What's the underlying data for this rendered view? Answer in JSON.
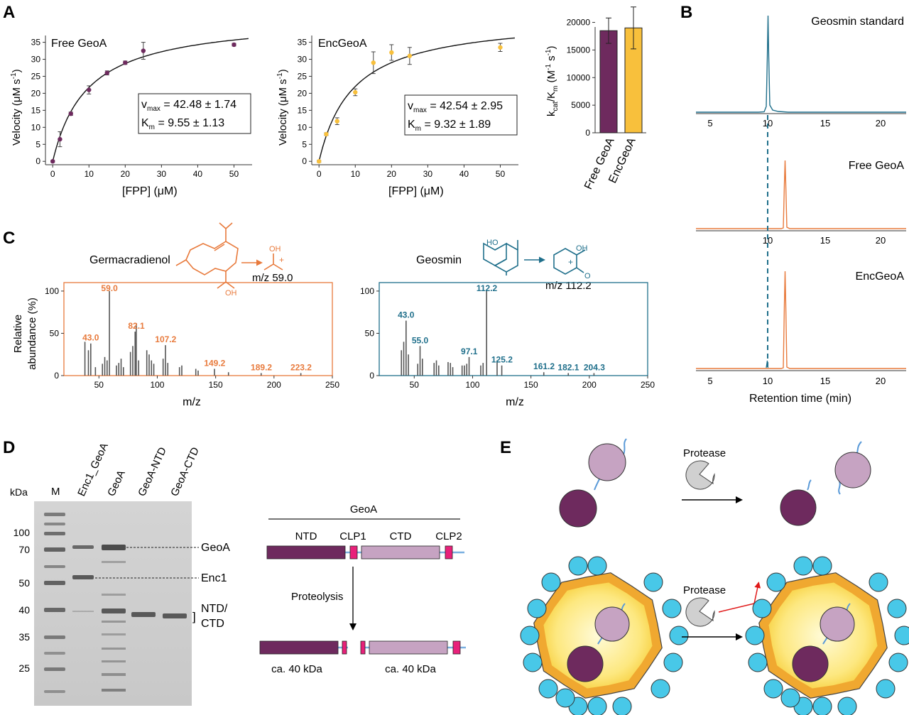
{
  "panel_labels": {
    "a": "A",
    "b": "B",
    "c": "C",
    "d": "D",
    "e": "E"
  },
  "colors": {
    "purple": "#6e2a5e",
    "yellow": "#f8c03c",
    "orange": "#e87a3c",
    "blue": "#1f6f8b",
    "lilac": "#c6a3c2",
    "pink": "#e8217a",
    "cyan": "#48c8e8",
    "shell": "#f0a830"
  },
  "panelA": {
    "kinetics_free": {
      "title": "Free GeoA",
      "box_line1": "v",
      "box_sub1": "max",
      "box_val1": " = 42.48 ± 1.74",
      "box_line2": "K",
      "box_sub2": "m",
      "box_val2": " = 9.55 ± 1.13",
      "ylabel": "Velocity (μM s",
      "ylabel_sup": "-1",
      "ylabel_end": ")",
      "xlabel": "[FPP] (μM)",
      "yticks": [
        "0",
        "5",
        "10",
        "15",
        "20",
        "25",
        "30",
        "35"
      ],
      "xticks": [
        "0",
        "10",
        "20",
        "30",
        "40",
        "50"
      ]
    },
    "kinetics_enc": {
      "title": "EncGeoA",
      "box_line1": "v",
      "box_sub1": "max",
      "box_val1": " = 42.54 ± 2.95",
      "box_line2": "K",
      "box_sub2": "m",
      "box_val2": " = 9.32 ± 1.89",
      "ylabel": "Velocity (μM s",
      "ylabel_sup": "-1",
      "ylabel_end": ")",
      "xlabel": "[FPP] (μM)",
      "yticks": [
        "0",
        "5",
        "10",
        "15",
        "20",
        "25",
        "30",
        "35"
      ],
      "xticks": [
        "0",
        "10",
        "20",
        "30",
        "40",
        "50"
      ]
    },
    "bar": {
      "ylabel_k": "k",
      "ylabel_cat": "cat",
      "ylabel_mid": "/K",
      "ylabel_m": "m",
      "ylabel_unit": " (M",
      "ylabel_sup": "-1",
      "ylabel_s": " s",
      "ylabel_sup2": "-1",
      "ylabel_end": ")",
      "yticks": [
        "0",
        "5000",
        "10000",
        "15000",
        "20000"
      ],
      "categories": [
        "Free GeoA",
        "EncGeoA"
      ]
    }
  },
  "panelB": {
    "traces": [
      "Geosmin standard",
      "Free GeoA",
      "EncGeoA"
    ],
    "xticks": [
      "5",
      "10",
      "15",
      "20"
    ],
    "xlabel": "Retention time (min)"
  },
  "panelC": {
    "germ": {
      "name": "Germacradienol",
      "oh": "OH",
      "frag_oh": "OH",
      "frag_mz": "m/z 59.0"
    },
    "geos": {
      "name": "Geosmin",
      "ho": "HO",
      "frag_oh": "OH",
      "frag_o": "O",
      "frag_mz": "m/z 112.2"
    },
    "plus": "+",
    "ylabel1": "Relative",
    "ylabel2": "abundance (%)",
    "xlabel": "m/z",
    "yticks": [
      "0",
      "50",
      "100"
    ],
    "xticks": [
      "50",
      "100",
      "150",
      "200",
      "250"
    ],
    "germ_peaks": [
      "59.0",
      "82.1",
      "43.0",
      "107.2",
      "149.2",
      "189.2",
      "223.2"
    ],
    "geos_peaks": [
      "112.2",
      "43.0",
      "55.0",
      "97.1",
      "125.2",
      "161.2",
      "182.1",
      "204.3"
    ]
  },
  "panelD": {
    "lanes": [
      "M",
      "Enc1_GeoA",
      "GeoA",
      "GeoA-NTD",
      "GeoA-CTD"
    ],
    "kda": "kDa",
    "markers": [
      "100",
      "70",
      "50",
      "40",
      "35",
      "25"
    ],
    "band_labels": [
      "GeoA",
      "Enc1",
      "NTD/",
      "CTD"
    ],
    "bracket": "]",
    "scheme": {
      "title": "GeoA",
      "domains": [
        "NTD",
        "CLP1",
        "CTD",
        "CLP2"
      ],
      "arrow_label": "Proteolysis",
      "sizes": [
        "ca. 40 kDa",
        "ca. 40 kDa"
      ]
    }
  },
  "panelE": {
    "protease_top": "Protease",
    "protease_bottom": "Protease"
  },
  "chart_data": [
    {
      "type": "scatter",
      "title": "Free GeoA",
      "xlabel": "[FPP] (μM)",
      "ylabel": "Velocity (μM s-1)",
      "xlim": [
        -2,
        55
      ],
      "ylim": [
        -1,
        37
      ],
      "x": [
        0,
        2,
        5,
        10,
        15,
        20,
        25,
        50
      ],
      "y": [
        0,
        6.5,
        14,
        21,
        26,
        29,
        32.5,
        34.3
      ],
      "err": [
        0.3,
        2.2,
        0.5,
        1.2,
        0.6,
        0.5,
        2.5,
        0.4
      ],
      "fit": {
        "vmax": 42.48,
        "km": 9.55
      }
    },
    {
      "type": "scatter",
      "title": "EncGeoA",
      "xlabel": "[FPP] (μM)",
      "ylabel": "Velocity (μM s-1)",
      "xlim": [
        -2,
        55
      ],
      "ylim": [
        -1,
        37
      ],
      "x": [
        0,
        2,
        5,
        10,
        15,
        20,
        25,
        50
      ],
      "y": [
        0,
        8,
        11.8,
        20.3,
        29,
        32,
        31,
        33.5
      ],
      "err": [
        0.3,
        0.4,
        1,
        1,
        3.2,
        2.3,
        2.5,
        1.2
      ],
      "fit": {
        "vmax": 42.54,
        "km": 9.32
      }
    },
    {
      "type": "bar",
      "categories": [
        "Free GeoA",
        "EncGeoA"
      ],
      "values": [
        18500,
        19000
      ],
      "err": [
        2300,
        3800
      ],
      "ylabel": "kcat/Km (M-1 s-1)",
      "ylim": [
        0,
        22000
      ]
    },
    {
      "type": "bar",
      "xlabel": "m/z",
      "ylabel": "Relative abundance (%)",
      "xlim": [
        20,
        250
      ],
      "ylim": [
        0,
        110
      ],
      "x": [
        38,
        41,
        43,
        47,
        53,
        55,
        57,
        59,
        65,
        67,
        69,
        71,
        77,
        79,
        81,
        82,
        84,
        91,
        93,
        95,
        97,
        105,
        107,
        109,
        119,
        121,
        133,
        135,
        149,
        161,
        189,
        223
      ],
      "values": [
        40,
        30,
        38,
        10,
        14,
        22,
        18,
        100,
        12,
        15,
        20,
        10,
        28,
        35,
        52,
        62,
        18,
        30,
        25,
        18,
        14,
        20,
        36,
        15,
        10,
        12,
        8,
        6,
        8,
        4,
        3,
        3
      ]
    },
    {
      "type": "bar",
      "xlabel": "m/z",
      "ylabel": "Relative abundance (%)",
      "xlim": [
        20,
        250
      ],
      "ylim": [
        0,
        110
      ],
      "x": [
        39,
        41,
        43,
        45,
        53,
        55,
        57,
        67,
        69,
        71,
        79,
        81,
        83,
        91,
        93,
        95,
        97,
        107,
        109,
        112,
        121,
        125,
        161,
        182,
        204
      ],
      "values": [
        30,
        40,
        65,
        25,
        14,
        35,
        20,
        15,
        18,
        12,
        16,
        15,
        10,
        12,
        12,
        14,
        22,
        12,
        15,
        100,
        18,
        12,
        4,
        3,
        3
      ]
    }
  ]
}
